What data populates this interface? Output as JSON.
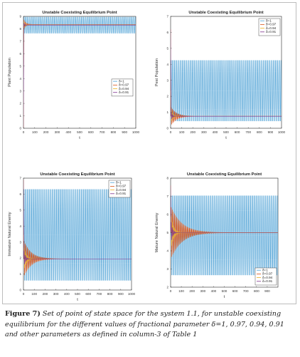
{
  "caption": {
    "figure_label": "Figure 7)",
    "text": " Set of point of state space for the system 1.1, for unstable coexisting equilibrium for the different values of fractional parameter δ=1, 0.97, 0.94, 0.91 and other parameters as defined in column-3 of Table 1"
  },
  "legend_labels": [
    "δ=1",
    "δ=0.97",
    "δ=0.94",
    "δ=0.91"
  ],
  "series_colors": [
    "#4a9fd5",
    "#d9541a",
    "#edb120",
    "#7e2f8e"
  ],
  "chart_data": [
    {
      "type": "line",
      "title": "Unstable Coexisting Equilibrium Point",
      "xlabel": "t",
      "ylabel": "Plant Population",
      "xlim": [
        0,
        1000
      ],
      "ylim": [
        0,
        9
      ],
      "xticks": [
        "0",
        "100",
        "200",
        "300",
        "400",
        "500",
        "600",
        "700",
        "800",
        "900",
        "1000"
      ],
      "yticks": [
        "0",
        "1",
        "2",
        "3",
        "4",
        "5",
        "6",
        "7",
        "8",
        "9"
      ],
      "legend_position": "center-right",
      "series": [
        {
          "name": "δ=1",
          "start": 0,
          "equilibrium": 8.3,
          "osc_amplitude": 0.7,
          "decay": 0,
          "period": 10
        },
        {
          "name": "δ=0.97",
          "start": 0,
          "equilibrium": 8.35,
          "osc_amplitude": 0.4,
          "decay": 0.05,
          "period": 10
        },
        {
          "name": "δ=0.94",
          "start": 0,
          "equilibrium": 8.3,
          "osc_amplitude": 0.3,
          "decay": 0.08,
          "period": 10
        },
        {
          "name": "δ=0.91",
          "start": 0,
          "equilibrium": 8.3,
          "osc_amplitude": 0.2,
          "decay": 0.1,
          "period": 10
        }
      ]
    },
    {
      "type": "line",
      "title": "Unstable Coexisting Equilibrium Point",
      "xlabel": "t",
      "ylabel": "Pest Population",
      "xlim": [
        0,
        1000
      ],
      "ylim": [
        0,
        7
      ],
      "xticks": [
        "0",
        "100",
        "200",
        "300",
        "400",
        "500",
        "600",
        "700",
        "800",
        "900",
        "1000"
      ],
      "yticks": [
        "0",
        "1",
        "2",
        "3",
        "4",
        "5",
        "6",
        "7"
      ],
      "legend_position": "top-right",
      "series": [
        {
          "name": "δ=1",
          "start": 6.2,
          "equilibrium": 2.35,
          "osc_amplitude": 2.0,
          "decay": 0,
          "period": 10
        },
        {
          "name": "δ=0.97",
          "start": 6.2,
          "equilibrium": 0.75,
          "osc_amplitude": 0.6,
          "decay": 0.02,
          "period": 10
        },
        {
          "name": "δ=0.94",
          "start": 6.2,
          "equilibrium": 0.75,
          "osc_amplitude": 0.4,
          "decay": 0.05,
          "period": 10
        },
        {
          "name": "δ=0.91",
          "start": 6.2,
          "equilibrium": 0.75,
          "osc_amplitude": 0.3,
          "decay": 0.08,
          "period": 10
        }
      ]
    },
    {
      "type": "line",
      "title": "Unstable Coexisting Equilibrium Point",
      "xlabel": "t",
      "ylabel": "Immature Natural Enemy",
      "xlim": [
        0,
        1000
      ],
      "ylim": [
        0,
        7
      ],
      "xticks": [
        "0",
        "100",
        "200",
        "300",
        "400",
        "500",
        "600",
        "700",
        "800",
        "900",
        "1000"
      ],
      "yticks": [
        "0",
        "1",
        "2",
        "3",
        "4",
        "5",
        "6",
        "7"
      ],
      "legend_position": "top-right",
      "series": [
        {
          "name": "δ=1",
          "start": 6.9,
          "equilibrium": 3.45,
          "osc_amplitude": 3.0,
          "decay": 0,
          "period": 10
        },
        {
          "name": "δ=0.97",
          "start": 6.9,
          "equilibrium": 1.95,
          "osc_amplitude": 1.2,
          "decay": 0.015,
          "period": 10
        },
        {
          "name": "δ=0.94",
          "start": 6.9,
          "equilibrium": 1.95,
          "osc_amplitude": 0.8,
          "decay": 0.04,
          "period": 10
        },
        {
          "name": "δ=0.91",
          "start": 6.9,
          "equilibrium": 1.95,
          "osc_amplitude": 0.6,
          "decay": 0.07,
          "period": 10
        }
      ]
    },
    {
      "type": "line",
      "title": "Unstable Coexisting Equilibrium Point",
      "xlabel": "t",
      "ylabel": "Mature Natural Enemy",
      "xlim": [
        0,
        1000
      ],
      "ylim": [
        2,
        8
      ],
      "xticks": [
        "0",
        "100",
        "200",
        "300",
        "400",
        "500",
        "600",
        "700",
        "800",
        "900"
      ],
      "yticks": [
        "2",
        "3",
        "4",
        "5",
        "6",
        "7",
        "8"
      ],
      "legend_position": "bottom-right",
      "series": [
        {
          "name": "δ=1",
          "start": 7.6,
          "equilibrium": 4.85,
          "osc_amplitude": 2.3,
          "decay": 0,
          "period": 10
        },
        {
          "name": "δ=0.97",
          "start": 7.6,
          "equilibrium": 5.0,
          "osc_amplitude": 1.5,
          "decay": 0.01,
          "period": 10
        },
        {
          "name": "δ=0.94",
          "start": 7.6,
          "equilibrium": 5.0,
          "osc_amplitude": 1.0,
          "decay": 0.04,
          "period": 10
        },
        {
          "name": "δ=0.91",
          "start": 7.6,
          "equilibrium": 5.0,
          "osc_amplitude": 0.7,
          "decay": 0.07,
          "period": 10
        }
      ]
    }
  ]
}
